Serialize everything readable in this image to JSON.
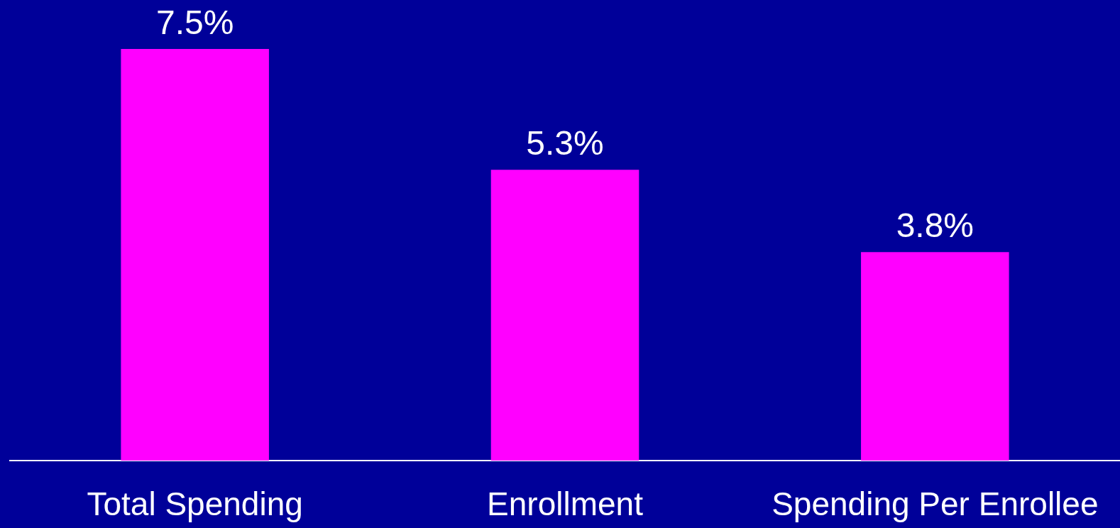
{
  "chart_data": {
    "type": "bar",
    "categories": [
      "Total Spending",
      "Enrollment",
      "Spending Per Enrollee"
    ],
    "values": [
      7.5,
      5.3,
      3.8
    ],
    "color": "#ff00ff",
    "value_labels": [
      "7.5%",
      "5.3%",
      "3.8%"
    ]
  }
}
